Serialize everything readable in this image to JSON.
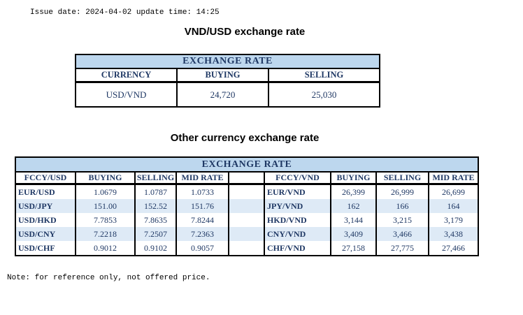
{
  "page": {
    "issue_line": "Issue date: 2024-04-02 update time: 14:25",
    "note": "Note: for reference only, not offered price."
  },
  "colors": {
    "banner_bg": "#BDD7EE",
    "stripe_bg": "#DEEAF6",
    "table_text": "#1F3864",
    "border": "#000000"
  },
  "vnd_usd_section": {
    "title": "VND/USD exchange rate",
    "table_title": "EXCHANGE RATE",
    "columns": [
      "CURRENCY",
      "BUYING",
      "SELLING"
    ],
    "rows": [
      {
        "currency": "USD/VND",
        "buying": "24,720",
        "selling": "25,030"
      }
    ]
  },
  "other_section": {
    "title": "Other currency exchange rate",
    "table_title": "EXCHANGE  RATE",
    "left": {
      "columns": [
        "FCCY/USD",
        "BUYING",
        "SELLING",
        "MID RATE"
      ],
      "rows": [
        [
          "EUR/USD",
          "1.0679",
          "1.0787",
          "1.0733"
        ],
        [
          "USD/JPY",
          "151.00",
          "152.52",
          "151.76"
        ],
        [
          "USD/HKD",
          "7.7853",
          "7.8635",
          "7.8244"
        ],
        [
          "USD/CNY",
          "7.2218",
          "7.2507",
          "7.2363"
        ],
        [
          "USD/CHF",
          "0.9012",
          "0.9102",
          "0.9057"
        ]
      ]
    },
    "right": {
      "columns": [
        "FCCY/VND",
        "BUYING",
        "SELLING",
        "MID RATE"
      ],
      "rows": [
        [
          "EUR/VND",
          "26,399",
          "26,999",
          "26,699"
        ],
        [
          "JPY/VND",
          "162",
          "166",
          "164"
        ],
        [
          "HKD/VND",
          "3,144",
          "3,215",
          "3,179"
        ],
        [
          "CNY/VND",
          "3,409",
          "3,466",
          "3,438"
        ],
        [
          "CHF/VND",
          "27,158",
          "27,775",
          "27,466"
        ]
      ]
    }
  }
}
